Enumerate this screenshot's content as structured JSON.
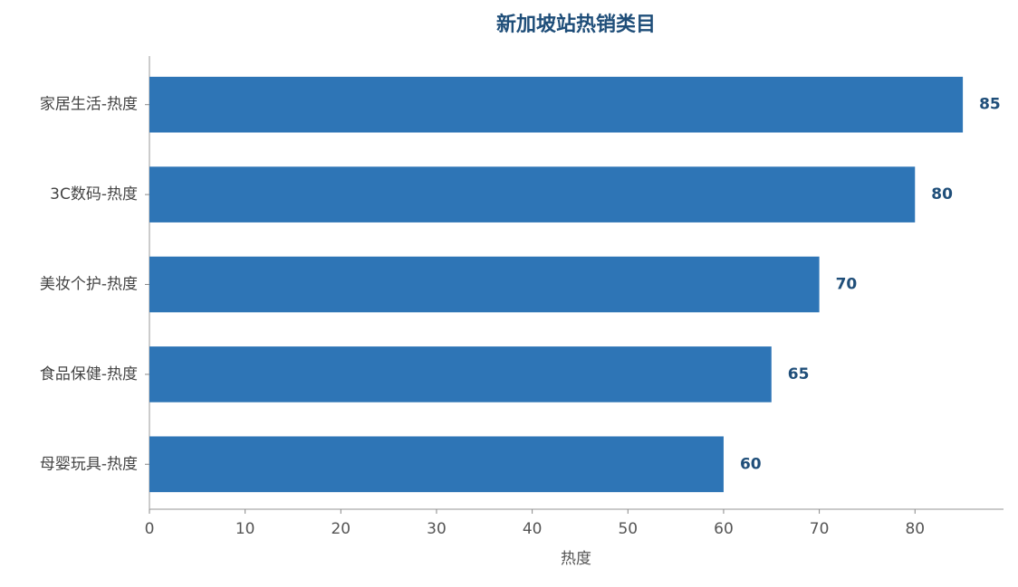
{
  "chart_data": {
    "type": "hbar",
    "title": "新加坡站热销类目",
    "categories": [
      "家居生活-热度",
      "3C数码-热度",
      "美妆个护-热度",
      "食品保健-热度",
      "母婴玩具-热度"
    ],
    "values": [
      85,
      80,
      70,
      65,
      60
    ],
    "color": "#2e75b6",
    "label_color": "#1f4e79",
    "xlabel": "热度",
    "xlim": [
      0,
      89.25
    ],
    "xticks": [
      0,
      10,
      20,
      30,
      40,
      50,
      60,
      70,
      80
    ]
  }
}
